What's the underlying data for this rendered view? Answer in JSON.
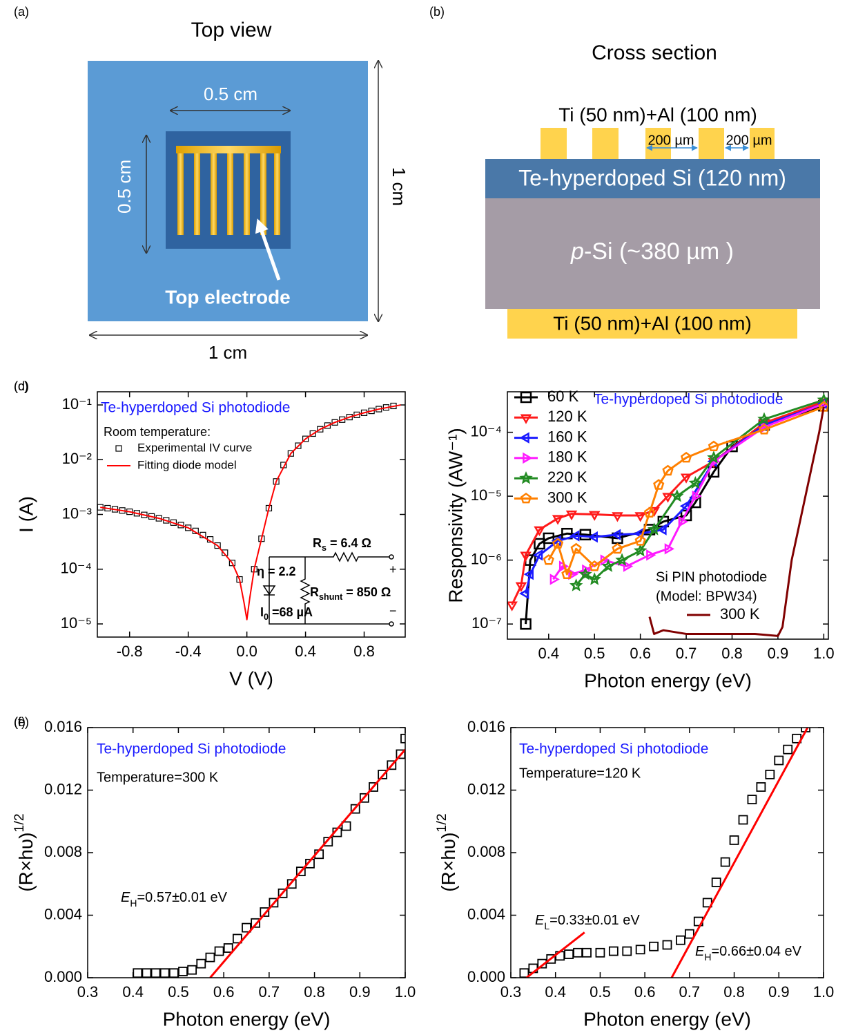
{
  "diagrams": {
    "a": {
      "label": "(a)",
      "title": "Top view",
      "inner_width": "0.5 cm",
      "inner_height": "0.5 cm",
      "outer_height": "1 cm",
      "outer_width": "1 cm",
      "electrode_label": "Top electrode"
    },
    "b": {
      "label": "(b)",
      "title": "Cross section",
      "top_contact": "Ti (50 nm)+Al (100 nm)",
      "spacing_1": "200 µm",
      "spacing_2": "200 µm",
      "top_layer": "Te-hyperdoped Si (120 nm)",
      "substrate": {
        "parts": [
          {
            "text": "p",
            "style": "italic"
          },
          {
            "text": "-Si (~380 µm )"
          }
        ]
      },
      "bottom_contact": "Ti (50 nm)+Al (100 nm)"
    }
  },
  "chart_data": [
    {
      "type": "line",
      "panel": "(c)",
      "xlabel": "V (V)",
      "ylabel": "I (A)",
      "yscale": "log",
      "xlim": [
        -1.02,
        1.08
      ],
      "ylim": [
        5.75e-06,
        0.174
      ],
      "xticks": [
        -0.8,
        -0.4,
        {
          "value": 0,
          "label": "0.0"
        },
        0.4,
        0.8
      ],
      "yticks": [
        {
          "value": 0.1,
          "label": "10⁻¹"
        },
        {
          "value": 0.01,
          "label": "10⁻²"
        },
        {
          "value": 0.001,
          "label": "10⁻³"
        },
        {
          "value": 0.0001,
          "label": "10⁻⁴"
        },
        {
          "value": 1e-05,
          "label": "10⁻⁵"
        }
      ],
      "legend": "upper left",
      "annotations": [
        "Te-hyperdoped Si photodiode",
        "Room temperature:",
        {
          "parts": [
            {
              "text": "R"
            },
            {
              "text": "s",
              "style": "sub"
            },
            {
              "text": " = 6.4 Ω"
            }
          ]
        },
        "η = 2.2",
        {
          "parts": [
            {
              "text": "R"
            },
            {
              "text": "shunt",
              "style": "sub"
            },
            {
              "text": " = 850 Ω"
            }
          ]
        },
        {
          "parts": [
            {
              "text": "I"
            },
            {
              "text": "0",
              "style": "sub"
            },
            {
              "text": " =68 µA"
            }
          ]
        },
        "+",
        "−"
      ],
      "series": [
        {
          "name": "Experimental IV curve",
          "color": "#000000",
          "marker": "square",
          "line": "none",
          "x": [
            -1.0,
            -0.95,
            -0.9,
            -0.85,
            -0.8,
            -0.75,
            -0.7,
            -0.65,
            -0.6,
            -0.55,
            -0.5,
            -0.45,
            -0.4,
            -0.35,
            -0.3,
            -0.25,
            -0.2,
            -0.15,
            -0.1,
            -0.05,
            0.05,
            0.1,
            0.15,
            0.2,
            0.25,
            0.3,
            0.35,
            0.4,
            0.45,
            0.5,
            0.55,
            0.6,
            0.65,
            0.7,
            0.75,
            0.8,
            0.85,
            0.9,
            0.95,
            1.0
          ],
          "values": [
            0.00135,
            0.0013,
            0.00124,
            0.00118,
            0.00112,
            0.00105,
            0.00098,
            0.00092,
            0.00085,
            0.00078,
            0.00071,
            0.00064,
            0.00057,
            0.0005,
            0.00042,
            0.00035,
            0.00027,
            0.0002,
            0.00013,
            6.5e-05,
            0.0001,
            0.00036,
            0.0013,
            0.004,
            0.008,
            0.013,
            0.018,
            0.024,
            0.03,
            0.036,
            0.042,
            0.048,
            0.054,
            0.06,
            0.066,
            0.072,
            0.078,
            0.084,
            0.09,
            0.096
          ]
        },
        {
          "name": "Fitting diode model",
          "color": "#ff0000",
          "marker": "none",
          "line": "solid",
          "x": [
            -1.0,
            -0.8,
            -0.6,
            -0.4,
            -0.2,
            -0.1,
            -0.05,
            -0.02,
            0,
            0.02,
            0.05,
            0.1,
            0.15,
            0.2,
            0.3,
            0.4,
            0.5,
            0.6,
            0.7,
            0.8,
            0.9,
            1.05
          ],
          "values": [
            0.00135,
            0.00112,
            0.00085,
            0.00057,
            0.00027,
            0.00013,
            6.5e-05,
            2.5e-05,
            1.2e-05,
            3e-05,
            0.0001,
            0.00036,
            0.0013,
            0.004,
            0.013,
            0.024,
            0.036,
            0.048,
            0.06,
            0.072,
            0.084,
            0.1
          ]
        }
      ]
    },
    {
      "type": "line",
      "panel": "(d)",
      "xlabel": "Photon energy (eV)",
      "ylabel": "Responsivity (AW⁻¹)",
      "yscale": "log",
      "xlim": [
        0.31,
        1.01
      ],
      "ylim": [
        5.8e-08,
        0.00043
      ],
      "xticks": [
        0.4,
        0.5,
        0.6,
        0.7,
        0.8,
        0.9,
        {
          "value": 1,
          "label": "1.0"
        }
      ],
      "yticks": [
        {
          "value": 0.0001,
          "label": "10⁻⁴"
        },
        {
          "value": 1e-05,
          "label": "10⁻⁵"
        },
        {
          "value": 1e-06,
          "label": "10⁻⁶"
        },
        {
          "value": 1e-07,
          "label": "10⁻⁷"
        }
      ],
      "legend": "upper left",
      "annotations": [
        "Te-hyperdoped Si photodiode",
        "Si PIN photodiode",
        "(Model: BPW34)"
      ],
      "series": [
        {
          "name": "60 K",
          "color": "#000000",
          "marker": "square",
          "line": "solid",
          "x": [
            0.35,
            0.36,
            0.38,
            0.4,
            0.44,
            0.48,
            0.55,
            0.62,
            0.65,
            0.7,
            0.72,
            0.76,
            0.8,
            0.87,
            1.0
          ],
          "values": [
            1e-07,
            1e-06,
            1.8e-06,
            2.2e-06,
            2.6e-06,
            2.5e-06,
            2.2e-06,
            3e-06,
            4e-06,
            5e-06,
            8e-06,
            2.4e-05,
            6e-05,
            0.00013,
            0.00026
          ]
        },
        {
          "name": "120 K",
          "color": "#ff1a1a",
          "marker": "triangle-down",
          "line": "solid",
          "x": [
            0.32,
            0.34,
            0.35,
            0.38,
            0.42,
            0.45,
            0.5,
            0.55,
            0.6,
            0.63,
            0.66,
            0.7,
            0.76,
            0.87,
            1.0
          ],
          "values": [
            2e-07,
            4e-07,
            1.2e-06,
            3e-06,
            4.5e-06,
            5.3e-06,
            5.2e-06,
            5e-06,
            5e-06,
            6e-06,
            1e-05,
            2e-05,
            3.5e-05,
            0.00014,
            0.0003
          ]
        },
        {
          "name": "160 K",
          "color": "#1a1aff",
          "marker": "triangle-left",
          "line": "solid",
          "x": [
            0.35,
            0.36,
            0.38,
            0.42,
            0.46,
            0.5,
            0.55,
            0.6,
            0.65,
            0.7,
            0.76,
            0.87,
            1.0
          ],
          "values": [
            3e-07,
            6e-07,
            1.2e-06,
            2e-06,
            2.4e-06,
            2.3e-06,
            2.5e-06,
            2.6e-06,
            3e-06,
            7e-06,
            3.5e-05,
            0.00013,
            0.00028
          ]
        },
        {
          "name": "180 K",
          "color": "#ff1aff",
          "marker": "triangle-right",
          "line": "solid",
          "x": [
            0.41,
            0.43,
            0.45,
            0.48,
            0.52,
            0.57,
            0.62,
            0.66,
            0.69,
            0.72,
            0.76,
            0.87,
            1.0
          ],
          "values": [
            5e-07,
            8e-07,
            6e-07,
            7e-07,
            1e-06,
            8e-07,
            1.2e-06,
            1.5e-06,
            4e-06,
            1e-05,
            3.5e-05,
            0.00012,
            0.00028
          ]
        },
        {
          "name": "220 K",
          "color": "#228b22",
          "marker": "star",
          "line": "solid",
          "x": [
            0.46,
            0.48,
            0.5,
            0.53,
            0.56,
            0.6,
            0.63,
            0.68,
            0.72,
            0.76,
            0.87,
            1.0
          ],
          "values": [
            4e-07,
            6e-07,
            5e-07,
            8e-07,
            1e-06,
            1.4e-06,
            3e-06,
            1e-05,
            1.6e-05,
            4e-05,
            0.00016,
            0.00032
          ]
        },
        {
          "name": "300 K",
          "color": "#ff8000",
          "marker": "pentagon",
          "line": "solid",
          "x": [
            0.4,
            0.42,
            0.44,
            0.46,
            0.5,
            0.55,
            0.6,
            0.62,
            0.64,
            0.66,
            0.7,
            0.76,
            0.87,
            1.0
          ],
          "values": [
            1e-06,
            1.8e-06,
            6e-07,
            1.5e-06,
            8e-07,
            1.5e-06,
            2e-06,
            5.5e-06,
            1.5e-05,
            2.5e-05,
            4e-05,
            6e-05,
            0.00011,
            0.00025
          ]
        },
        {
          "name": "300 K",
          "color": "#800000",
          "marker": "none",
          "line": "solid",
          "legend_loc": "lower right",
          "x": [
            0.62,
            0.63,
            0.65,
            0.7,
            0.75,
            0.8,
            0.85,
            0.9,
            0.91,
            0.93,
            0.96,
            0.99,
            1.0
          ],
          "values": [
            1.3e-07,
            7e-08,
            8e-08,
            7e-08,
            7e-08,
            7e-08,
            7e-08,
            6.5e-08,
            9e-08,
            1e-06,
            1e-05,
            0.0001,
            0.00025
          ]
        }
      ]
    },
    {
      "type": "line",
      "panel": "(e)",
      "xlabel": "Photon energy (eV)",
      "ylabel": {
        "parts": [
          {
            "text": "(R×hυ)"
          },
          {
            "text": "1/2",
            "style": "sup"
          }
        ]
      },
      "yscale": "linear",
      "xlim": [
        0.3,
        1.0
      ],
      "ylim": [
        0,
        0.016
      ],
      "xticks": [
        0.3,
        0.4,
        0.5,
        0.6,
        0.7,
        0.8,
        0.9,
        {
          "value": 1,
          "label": "1.0"
        }
      ],
      "yticks": [
        {
          "value": 0,
          "label": "0.000"
        },
        0.004,
        0.008,
        0.012,
        0.016
      ],
      "annotations": [
        "Te-hyperdoped Si photodiode",
        "Temperature=300 K",
        {
          "parts": [
            {
              "text": "E",
              "style": "italic"
            },
            {
              "text": "H",
              "style": "sub"
            },
            {
              "text": "=0.57±0.01 eV"
            }
          ]
        }
      ],
      "series": [
        {
          "color": "#000000",
          "marker": "square",
          "line": "none",
          "x": [
            0.41,
            0.43,
            0.45,
            0.47,
            0.49,
            0.51,
            0.53,
            0.55,
            0.57,
            0.59,
            0.61,
            0.63,
            0.65,
            0.67,
            0.69,
            0.71,
            0.73,
            0.75,
            0.77,
            0.79,
            0.81,
            0.83,
            0.85,
            0.87,
            0.89,
            0.91,
            0.93,
            0.95,
            0.97,
            0.99,
            1.0
          ],
          "values": [
            0.0003,
            0.0003,
            0.0003,
            0.0003,
            0.0003,
            0.0004,
            0.0005,
            0.0009,
            0.0013,
            0.0017,
            0.0019,
            0.0025,
            0.0032,
            0.0035,
            0.0042,
            0.0048,
            0.0054,
            0.006,
            0.0068,
            0.0073,
            0.0079,
            0.0087,
            0.0093,
            0.0097,
            0.0108,
            0.0115,
            0.0122,
            0.013,
            0.0136,
            0.0143,
            0.0153
          ]
        },
        {
          "color": "#ff0000",
          "marker": "none",
          "line": "solid",
          "x": [
            0.57,
            1.0
          ],
          "values": [
            0,
            0.0146
          ]
        }
      ]
    },
    {
      "type": "line",
      "panel": "(f)",
      "xlabel": "Photon energy (eV)",
      "ylabel": {
        "parts": [
          {
            "text": "(R×hυ)"
          },
          {
            "text": "1/2",
            "style": "sup"
          }
        ]
      },
      "yscale": "linear",
      "xlim": [
        0.3,
        1.0
      ],
      "ylim": [
        0,
        0.016
      ],
      "xticks": [
        0.3,
        0.4,
        0.5,
        0.6,
        0.7,
        0.8,
        0.9,
        {
          "value": 1,
          "label": "1.0"
        }
      ],
      "yticks": [
        {
          "value": 0,
          "label": "0.000"
        },
        0.004,
        0.008,
        0.012,
        0.016
      ],
      "annotations": [
        "Te-hyperdoped Si photodiode",
        "Temperature=120 K",
        {
          "parts": [
            {
              "text": "E",
              "style": "italic"
            },
            {
              "text": "L",
              "style": "sub"
            },
            {
              "text": "=0.33±0.01 eV"
            }
          ]
        },
        {
          "parts": [
            {
              "text": "E",
              "style": "italic"
            },
            {
              "text": "H",
              "style": "sub"
            },
            {
              "text": "=0.66±0.04 eV"
            }
          ]
        }
      ],
      "series": [
        {
          "color": "#000000",
          "marker": "square",
          "line": "none",
          "x": [
            0.33,
            0.35,
            0.37,
            0.39,
            0.41,
            0.43,
            0.45,
            0.47,
            0.5,
            0.53,
            0.56,
            0.59,
            0.62,
            0.65,
            0.68,
            0.7,
            0.72,
            0.74,
            0.76,
            0.78,
            0.8,
            0.82,
            0.84,
            0.86,
            0.88,
            0.9,
            0.92,
            0.94,
            0.96
          ],
          "values": [
            0.0003,
            0.0006,
            0.0009,
            0.0012,
            0.0014,
            0.0015,
            0.0016,
            0.0016,
            0.0016,
            0.0017,
            0.0017,
            0.0018,
            0.002,
            0.0021,
            0.0024,
            0.0028,
            0.0036,
            0.0048,
            0.0061,
            0.0074,
            0.0088,
            0.0101,
            0.0114,
            0.0122,
            0.013,
            0.0139,
            0.0146,
            0.0153,
            0.016
          ]
        },
        {
          "color": "#ff0000",
          "marker": "none",
          "line": "solid",
          "x": [
            0.335,
            0.465
          ],
          "values": [
            0,
            0.0029
          ]
        },
        {
          "color": "#ff0000",
          "marker": "none",
          "line": "solid",
          "x": [
            0.66,
            0.97
          ],
          "values": [
            0,
            0.0163
          ]
        }
      ]
    }
  ]
}
